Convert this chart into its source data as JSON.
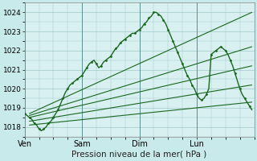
{
  "title": "",
  "xlabel": "Pression niveau de la mer( hPa )",
  "ylabel": "",
  "bg_color": "#c8eaea",
  "plot_bg_color": "#d8f0f0",
  "grid_color": "#a0c8c8",
  "line_color": "#1a6620",
  "xlim": [
    0,
    96
  ],
  "ylim": [
    1017.5,
    1024.5
  ],
  "yticks": [
    1018,
    1019,
    1020,
    1021,
    1022,
    1023,
    1024
  ],
  "xtick_positions": [
    0,
    24,
    48,
    72
  ],
  "xtick_labels": [
    "Ven",
    "Sam",
    "Dim",
    "Lun"
  ],
  "vline_positions": [
    0,
    24,
    48,
    72
  ],
  "main_x": [
    0,
    1,
    2,
    3,
    4,
    5,
    6,
    7,
    8,
    9,
    10,
    11,
    12,
    13,
    14,
    15,
    16,
    17,
    18,
    19,
    20,
    21,
    22,
    23,
    24,
    25,
    26,
    27,
    28,
    29,
    30,
    31,
    32,
    33,
    34,
    35,
    36,
    37,
    38,
    39,
    40,
    41,
    42,
    43,
    44,
    45,
    46,
    47,
    48,
    49,
    50,
    51,
    52,
    53,
    54,
    55,
    56,
    57,
    58,
    59,
    60,
    61,
    62,
    63,
    64,
    65,
    66,
    67,
    68,
    69,
    70,
    71,
    72,
    73,
    74,
    75,
    76,
    77,
    78,
    79,
    80,
    81,
    82,
    83,
    84,
    85,
    86,
    87,
    88,
    89,
    90,
    91,
    92,
    93,
    94,
    95
  ],
  "main_y": [
    1018.7,
    1018.6,
    1018.5,
    1018.4,
    1018.2,
    1018.1,
    1017.9,
    1017.8,
    1017.9,
    1018.0,
    1018.2,
    1018.3,
    1018.5,
    1018.7,
    1018.9,
    1019.2,
    1019.5,
    1019.8,
    1020.0,
    1020.2,
    1020.3,
    1020.4,
    1020.5,
    1020.6,
    1020.7,
    1020.9,
    1021.1,
    1021.3,
    1021.4,
    1021.5,
    1021.3,
    1021.1,
    1021.2,
    1021.4,
    1021.5,
    1021.6,
    1021.7,
    1021.9,
    1022.1,
    1022.2,
    1022.4,
    1022.5,
    1022.6,
    1022.7,
    1022.8,
    1022.9,
    1022.9,
    1023.0,
    1023.1,
    1023.2,
    1023.4,
    1023.5,
    1023.7,
    1023.8,
    1024.0,
    1024.0,
    1023.9,
    1023.8,
    1023.6,
    1023.4,
    1023.1,
    1022.8,
    1022.5,
    1022.2,
    1021.9,
    1021.6,
    1021.3,
    1021.0,
    1020.7,
    1020.5,
    1020.2,
    1020.0,
    1019.7,
    1019.5,
    1019.4,
    1019.5,
    1019.7,
    1020.0,
    1021.8,
    1021.9,
    1022.0,
    1022.1,
    1022.2,
    1022.1,
    1022.0,
    1021.8,
    1021.5,
    1021.2,
    1020.8,
    1020.4,
    1020.0,
    1019.7,
    1019.5,
    1019.3,
    1019.1,
    1018.9
  ],
  "envelope_lines": [
    {
      "x0": 2,
      "y0": 1018.7,
      "x1": 95,
      "y1": 1024.0
    },
    {
      "x0": 2,
      "y0": 1018.6,
      "x1": 95,
      "y1": 1022.2
    },
    {
      "x0": 2,
      "y0": 1018.5,
      "x1": 95,
      "y1": 1021.2
    },
    {
      "x0": 2,
      "y0": 1018.3,
      "x1": 95,
      "y1": 1020.2
    },
    {
      "x0": 2,
      "y0": 1018.1,
      "x1": 95,
      "y1": 1019.3
    }
  ]
}
